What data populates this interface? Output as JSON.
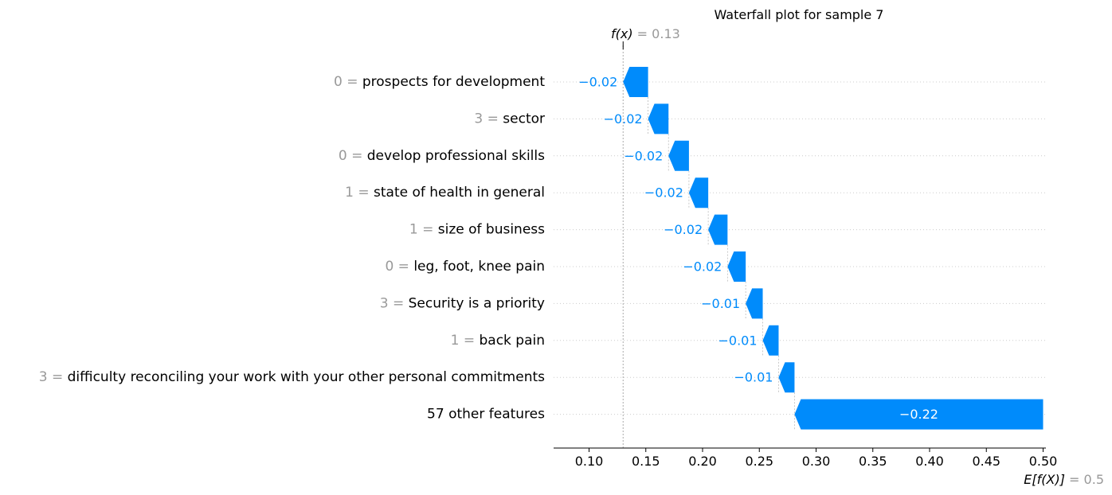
{
  "chart_data": {
    "type": "waterfall",
    "title": "Waterfall plot for sample 7",
    "fx_label": "f(x)",
    "fx_value": "0.13",
    "fx": 0.13,
    "ex_label": "E[f(X)]",
    "ex_value": "0.5",
    "ex": 0.5,
    "xlim": [
      0.07,
      0.5
    ],
    "xticks": [
      0.1,
      0.15,
      0.2,
      0.25,
      0.3,
      0.35,
      0.4,
      0.45,
      0.5
    ],
    "xtick_labels": [
      "0.10",
      "0.15",
      "0.20",
      "0.25",
      "0.30",
      "0.35",
      "0.40",
      "0.45",
      "0.50"
    ],
    "features": [
      {
        "value": "0",
        "name": "prospects for development",
        "start": 0.152,
        "end": 0.13,
        "label": "−0.02"
      },
      {
        "value": "3",
        "name": "sector",
        "start": 0.17,
        "end": 0.152,
        "label": "−0.02"
      },
      {
        "value": "0",
        "name": "develop professional skills",
        "start": 0.188,
        "end": 0.17,
        "label": "−0.02"
      },
      {
        "value": "1",
        "name": "state of health in general",
        "start": 0.205,
        "end": 0.188,
        "label": "−0.02"
      },
      {
        "value": "1",
        "name": "size of business",
        "start": 0.222,
        "end": 0.205,
        "label": "−0.02"
      },
      {
        "value": "0",
        "name": "leg, foot, knee pain",
        "start": 0.238,
        "end": 0.222,
        "label": "−0.02"
      },
      {
        "value": "3",
        "name": "Security is a priority",
        "start": 0.253,
        "end": 0.238,
        "label": "−0.01"
      },
      {
        "value": "1",
        "name": "back pain",
        "start": 0.267,
        "end": 0.253,
        "label": "−0.01"
      },
      {
        "value": "3",
        "name": "difficulty reconciling your work with your other personal commitments",
        "start": 0.281,
        "end": 0.267,
        "label": "−0.01"
      },
      {
        "value": "",
        "name": "57 other features",
        "start": 0.5,
        "end": 0.281,
        "label": "−0.22"
      }
    ],
    "colors": {
      "negative": "#008bfb",
      "value_gray": "#999999",
      "text": "#000000"
    }
  }
}
